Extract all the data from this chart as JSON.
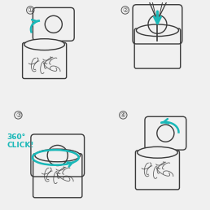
{
  "background_color": "#f0f0f0",
  "panel_bg": "#f0f0f0",
  "teal": "#1ab8b8",
  "line_color": "#3a3a3a",
  "figsize": [
    2.58,
    2.58
  ],
  "dpi": 100,
  "step3_text_line1": "360°",
  "step3_text_line2": "CLICK!",
  "divider_color": "#cccccc"
}
